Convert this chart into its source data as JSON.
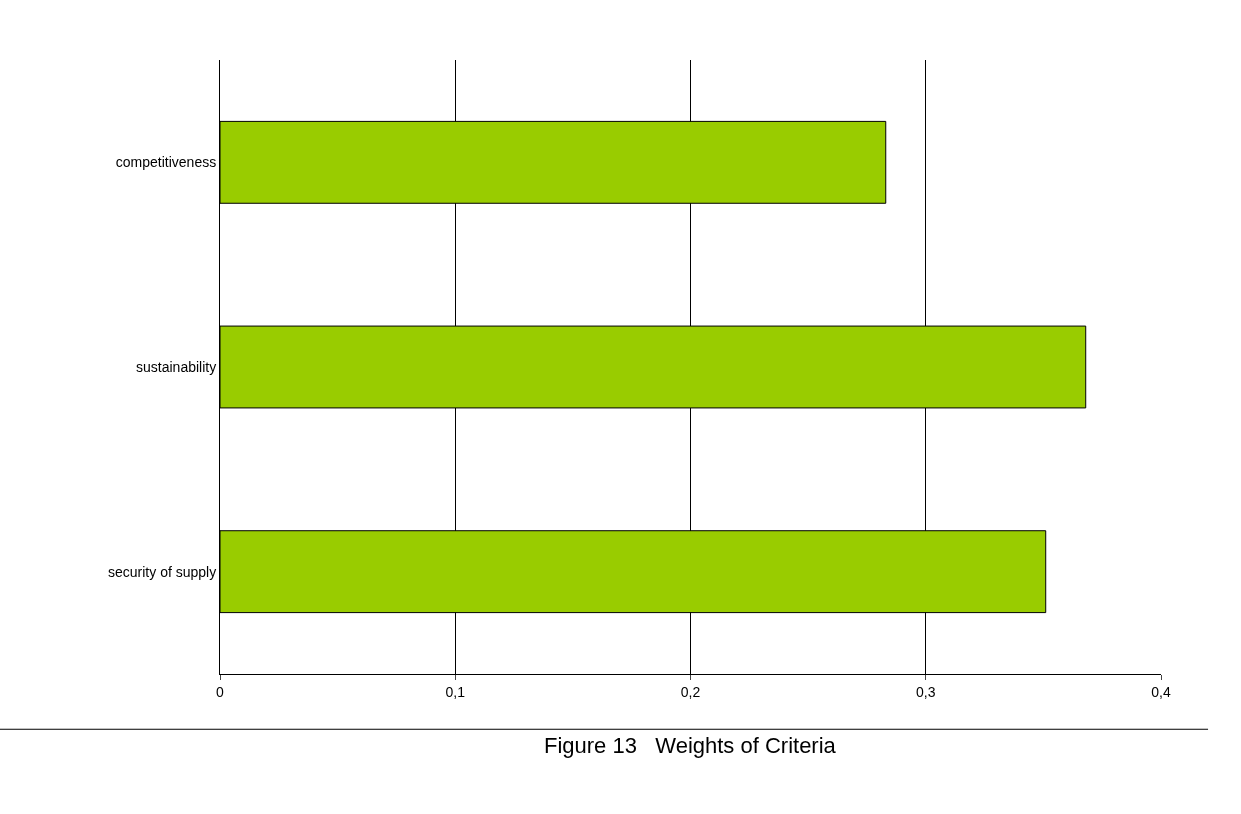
{
  "chart_data": {
    "type": "bar",
    "orientation": "horizontal",
    "categories": [
      "competitiveness",
      "sustainability",
      "security of supply"
    ],
    "values": [
      0.283,
      0.368,
      0.351
    ],
    "color": "#99cc00",
    "xlim": [
      0,
      0.4
    ],
    "xticks": [
      {
        "value": 0,
        "label": "0"
      },
      {
        "value": 0.1,
        "label": "0,1"
      },
      {
        "value": 0.2,
        "label": "0,2"
      },
      {
        "value": 0.3,
        "label": "0,3"
      },
      {
        "value": 0.4,
        "label": "0,4"
      }
    ],
    "grid": "x",
    "annotations": [
      "Figure 13   Weights of Criteria"
    ]
  }
}
